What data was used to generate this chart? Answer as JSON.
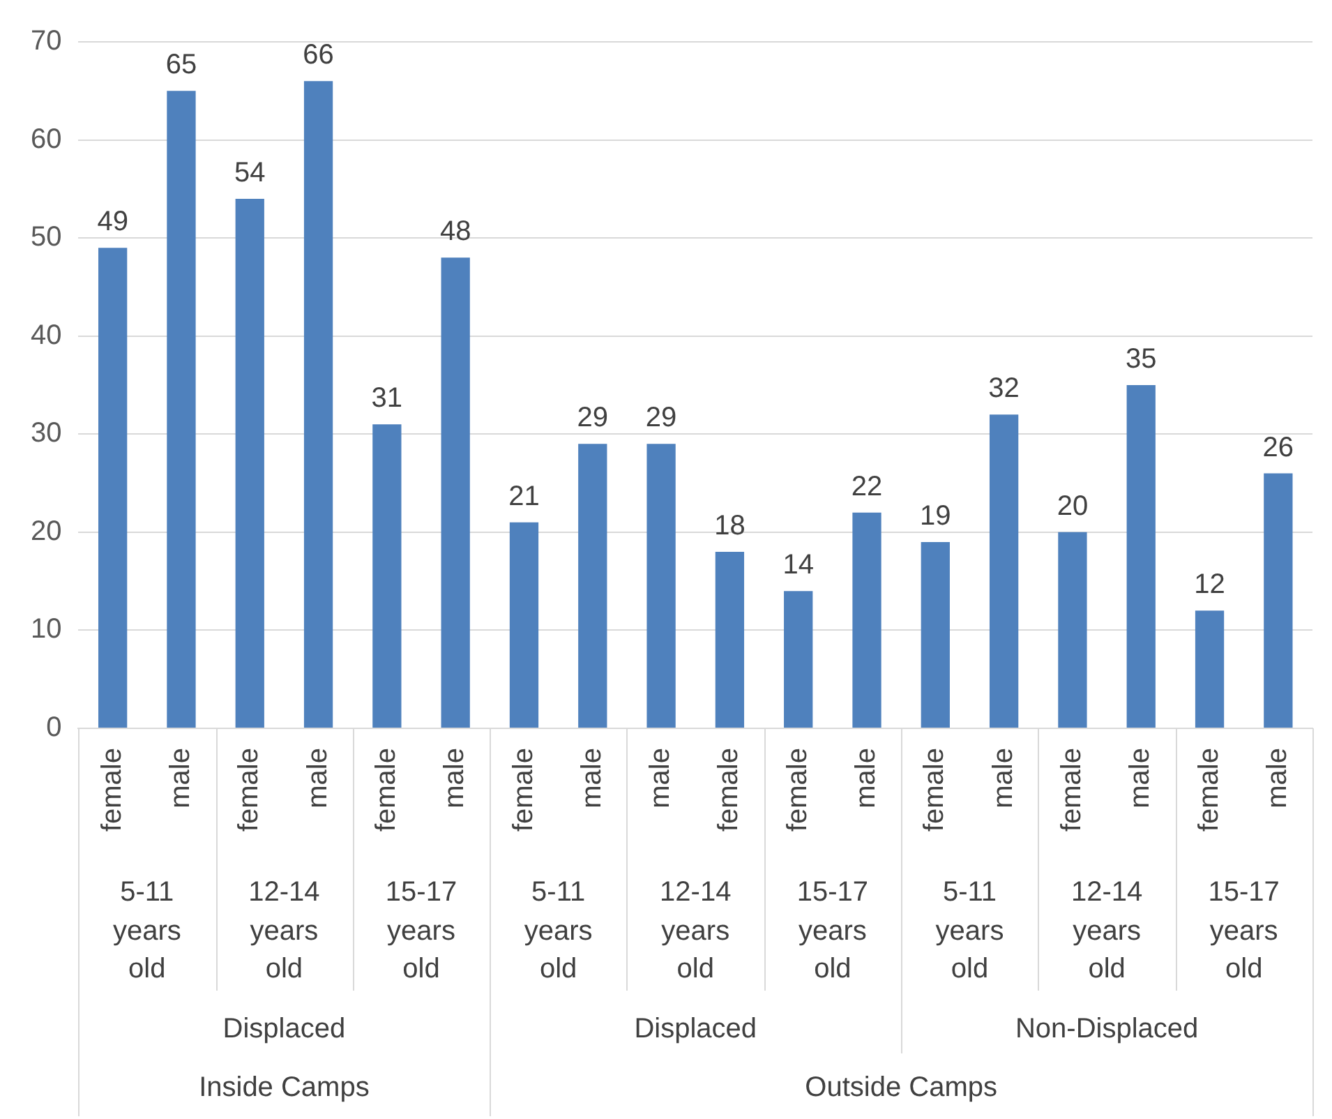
{
  "chart_data": {
    "type": "bar",
    "categories": [
      "female",
      "male",
      "female",
      "male",
      "female",
      "male",
      "female",
      "male",
      "male",
      "female",
      "female",
      "male",
      "female",
      "male",
      "female",
      "male",
      "female",
      "male"
    ],
    "values": [
      49,
      65,
      54,
      66,
      31,
      48,
      21,
      29,
      29,
      18,
      14,
      22,
      19,
      32,
      20,
      35,
      12,
      26
    ],
    "color": "#4f81bd",
    "ylim": [
      0,
      70
    ],
    "yticks": [
      0,
      10,
      20,
      30,
      40,
      50,
      60,
      70
    ],
    "grid": "y",
    "legend": false,
    "data_labels": true,
    "annotations": [
      "5-11 years old",
      "12-14 years old",
      "15-17 years old",
      "5-11 years old",
      "12-14 years old",
      "15-17 years old",
      "5-11 years old",
      "12-14 years old",
      "15-17 years old",
      "Displaced",
      "Displaced",
      "Non-Displaced",
      "Inside Camps",
      "Outside Camps"
    ]
  }
}
